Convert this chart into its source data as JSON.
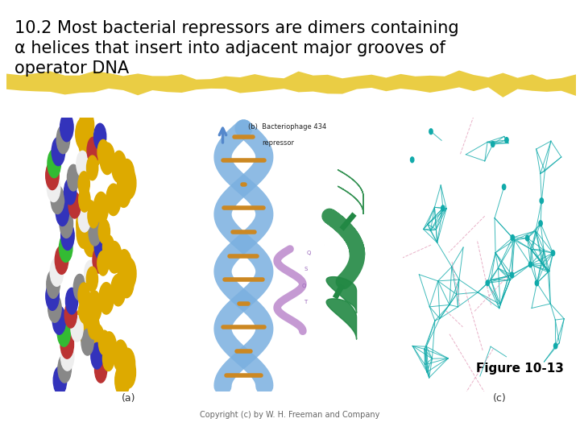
{
  "title_line1": "10.2 Most bacterial repressors are dimers containing",
  "title_line2": "α helices that insert into adjacent major grooves of",
  "title_line3": "operator DNA",
  "title_fontsize": 15,
  "title_color": "#000000",
  "figure_label": "Figure 10-13",
  "figure_label_fontsize": 11,
  "copyright_text": "Copyright (c) by W. H. Freeman and Company",
  "copyright_fontsize": 7,
  "background_color": "#ffffff",
  "highlight_color": "#E8C830",
  "label_a": "(a)",
  "label_c": "(c)",
  "label_b_line1": "(b)  Bacteriophage 434",
  "label_b_line2": "repressor"
}
